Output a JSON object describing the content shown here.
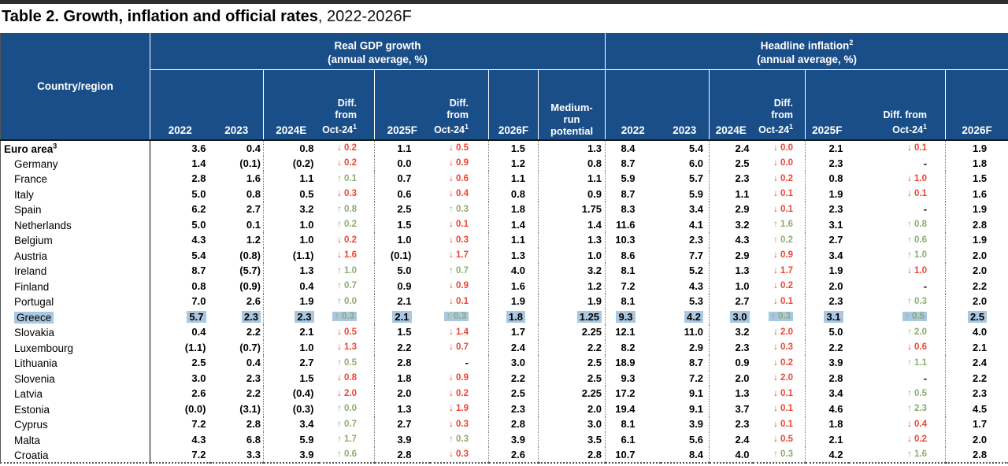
{
  "title": {
    "bold": "Table 2. Growth, inflation and official rates",
    "suffix": ", 2022-2026F"
  },
  "colors": {
    "header_blue": "#1a4e89",
    "diff_down_red": "#ee4434",
    "diff_up_green": "#8dac70",
    "highlight_blue": "#a9c7e1"
  },
  "header": {
    "country": "Country/region",
    "gdp_group": {
      "title": "Real GDP growth",
      "sup": "",
      "subtitle": "(annual average, %)"
    },
    "inflation_group": {
      "title": "Headline inflation",
      "sup": "2",
      "subtitle": "(annual average, %)"
    },
    "diff": {
      "line1": "Diff. from",
      "line2": "Oct-24",
      "sup": "1"
    },
    "gdp_cols": [
      "2022",
      "2023",
      "2024E",
      "2025F",
      "2026F"
    ],
    "potential_col": "Medium-run potential",
    "inflation_cols": [
      "2022",
      "2023",
      "2024E",
      "2025F",
      "2026F"
    ]
  },
  "table": {
    "rows": [
      {
        "name": "Euro area",
        "sup": "3",
        "style": "bold",
        "gdp": [
          "3.6",
          "0.4",
          "0.8",
          "↓ 0.2",
          "1.1",
          "↓ 0.5",
          "1.5",
          "1.3"
        ],
        "infl": [
          "8.4",
          "5.4",
          "2.4",
          "↓ 0.0",
          "2.1",
          "↓ 0.1",
          "1.9"
        ]
      },
      {
        "name": "Germany",
        "gdp": [
          "1.4",
          "(0.1)",
          "(0.2)",
          "↓ 0.2",
          "0.0",
          "↓ 0.9",
          "1.2",
          "0.8"
        ],
        "infl": [
          "8.7",
          "6.0",
          "2.5",
          "↓ 0.0",
          "2.3",
          "-",
          "1.8"
        ]
      },
      {
        "name": "France",
        "gdp": [
          "2.8",
          "1.6",
          "1.1",
          "↑ 0.1",
          "0.7",
          "↓ 0.6",
          "1.1",
          "1.1"
        ],
        "infl": [
          "5.9",
          "5.7",
          "2.3",
          "↓ 0.2",
          "0.8",
          "↓ 1.0",
          "1.5"
        ]
      },
      {
        "name": "Italy",
        "gdp": [
          "5.0",
          "0.8",
          "0.5",
          "↓ 0.3",
          "0.6",
          "↓ 0.4",
          "0.8",
          "0.9"
        ],
        "infl": [
          "8.7",
          "5.9",
          "1.1",
          "↓ 0.1",
          "1.9",
          "↓ 0.1",
          "1.6"
        ]
      },
      {
        "name": "Spain",
        "gdp": [
          "6.2",
          "2.7",
          "3.2",
          "↑ 0.8",
          "2.5",
          "↑ 0.3",
          "1.8",
          "1.75"
        ],
        "infl": [
          "8.3",
          "3.4",
          "2.9",
          "↓ 0.1",
          "2.3",
          "-",
          "1.9"
        ]
      },
      {
        "name": "Netherlands",
        "gdp": [
          "5.0",
          "0.1",
          "1.0",
          "↑ 0.2",
          "1.5",
          "↓ 0.1",
          "1.4",
          "1.4"
        ],
        "infl": [
          "11.6",
          "4.1",
          "3.2",
          "↑ 1.6",
          "3.1",
          "↑ 0.8",
          "2.8"
        ]
      },
      {
        "name": "Belgium",
        "gdp": [
          "4.3",
          "1.2",
          "1.0",
          "↓ 0.2",
          "1.0",
          "↓ 0.3",
          "1.1",
          "1.3"
        ],
        "infl": [
          "10.3",
          "2.3",
          "4.3",
          "↑ 0.2",
          "2.7",
          "↑ 0.6",
          "1.9"
        ]
      },
      {
        "name": "Austria",
        "gdp": [
          "5.4",
          "(0.8)",
          "(1.1)",
          "↓ 1.6",
          "(0.1)",
          "↓ 1.7",
          "1.3",
          "1.0"
        ],
        "infl": [
          "8.6",
          "7.7",
          "2.9",
          "↓ 0.9",
          "3.4",
          "↑ 1.0",
          "2.0"
        ]
      },
      {
        "name": "Ireland",
        "gdp": [
          "8.7",
          "(5.7)",
          "1.3",
          "↑ 1.0",
          "5.0",
          "↑ 0.7",
          "4.0",
          "3.2"
        ],
        "infl": [
          "8.1",
          "5.2",
          "1.3",
          "↓ 1.7",
          "1.9",
          "↓ 1.0",
          "2.0"
        ]
      },
      {
        "name": "Finland",
        "gdp": [
          "0.8",
          "(0.9)",
          "0.4",
          "↑ 0.7",
          "0.9",
          "↓ 0.9",
          "1.6",
          "1.2"
        ],
        "infl": [
          "7.2",
          "4.3",
          "1.0",
          "↓ 0.2",
          "2.0",
          "-",
          "2.2"
        ]
      },
      {
        "name": "Portugal",
        "gdp": [
          "7.0",
          "2.6",
          "1.9",
          "↑ 0.0",
          "2.1",
          "↓ 0.1",
          "1.9",
          "1.9"
        ],
        "infl": [
          "8.1",
          "5.3",
          "2.7",
          "↓ 0.1",
          "2.3",
          "↑ 0.3",
          "2.0"
        ]
      },
      {
        "name": "Greece",
        "highlight": true,
        "gdp": [
          "5.7",
          "2.3",
          "2.3",
          "↑ 0.3",
          "2.1",
          "↑ 0.3",
          "1.8",
          "1.25"
        ],
        "infl": [
          "9.3",
          "4.2",
          "3.0",
          "↑ 0.3",
          "3.1",
          "↑ 0.5",
          "2.5"
        ]
      },
      {
        "name": "Slovakia",
        "gdp": [
          "0.4",
          "2.2",
          "2.1",
          "↓ 0.5",
          "1.5",
          "↓ 1.4",
          "1.7",
          "2.25"
        ],
        "infl": [
          "12.1",
          "11.0",
          "3.2",
          "↓ 2.0",
          "5.0",
          "↑ 2.0",
          "4.0"
        ]
      },
      {
        "name": "Luxembourg",
        "gdp": [
          "(1.1)",
          "(0.7)",
          "1.0",
          "↓ 1.3",
          "2.2",
          "↓ 0.7",
          "2.4",
          "2.2"
        ],
        "infl": [
          "8.2",
          "2.9",
          "2.3",
          "↓ 0.3",
          "2.2",
          "↓ 0.6",
          "2.1"
        ]
      },
      {
        "name": "Lithuania",
        "gdp": [
          "2.5",
          "0.4",
          "2.7",
          "↑ 0.5",
          "2.8",
          "-",
          "3.0",
          "2.5"
        ],
        "infl": [
          "18.9",
          "8.7",
          "0.9",
          "↓ 0.2",
          "3.9",
          "↑ 1.1",
          "2.4"
        ]
      },
      {
        "name": "Slovenia",
        "gdp": [
          "3.0",
          "2.3",
          "1.5",
          "↓ 0.8",
          "1.8",
          "↓ 0.9",
          "2.2",
          "2.5"
        ],
        "infl": [
          "9.3",
          "7.2",
          "2.0",
          "↓ 2.0",
          "2.8",
          "-",
          "2.2"
        ]
      },
      {
        "name": "Latvia",
        "gdp": [
          "2.6",
          "2.2",
          "(0.4)",
          "↓ 2.0",
          "2.0",
          "↓ 0.2",
          "2.5",
          "2.25"
        ],
        "infl": [
          "17.2",
          "9.1",
          "1.3",
          "↓ 0.1",
          "3.4",
          "↑ 0.5",
          "2.3"
        ]
      },
      {
        "name": "Estonia",
        "gdp": [
          "(0.0)",
          "(3.1)",
          "(0.3)",
          "↑ 0.0",
          "1.3",
          "↓ 1.9",
          "2.3",
          "2.0"
        ],
        "infl": [
          "19.4",
          "9.1",
          "3.7",
          "↓ 0.1",
          "4.6",
          "↑ 2.3",
          "4.5"
        ]
      },
      {
        "name": "Cyprus",
        "gdp": [
          "7.2",
          "2.8",
          "3.4",
          "↑ 0.7",
          "2.7",
          "↓ 0.3",
          "2.8",
          "3.0"
        ],
        "infl": [
          "8.1",
          "3.9",
          "2.3",
          "↓ 0.1",
          "1.8",
          "↓ 0.4",
          "1.7"
        ]
      },
      {
        "name": "Malta",
        "gdp": [
          "4.3",
          "6.8",
          "5.9",
          "↑ 1.7",
          "3.9",
          "↑ 0.3",
          "3.9",
          "3.5"
        ],
        "infl": [
          "6.1",
          "5.6",
          "2.4",
          "↓ 0.5",
          "2.1",
          "↓ 0.2",
          "2.0"
        ]
      },
      {
        "name": "Croatia",
        "gdp": [
          "7.2",
          "3.3",
          "3.9",
          "↑ 0.6",
          "2.8",
          "↓ 0.3",
          "2.6",
          "2.8"
        ],
        "infl": [
          "10.7",
          "8.4",
          "4.0",
          "↑ 0.3",
          "4.2",
          "↑ 1.6",
          "2.8"
        ]
      }
    ]
  }
}
